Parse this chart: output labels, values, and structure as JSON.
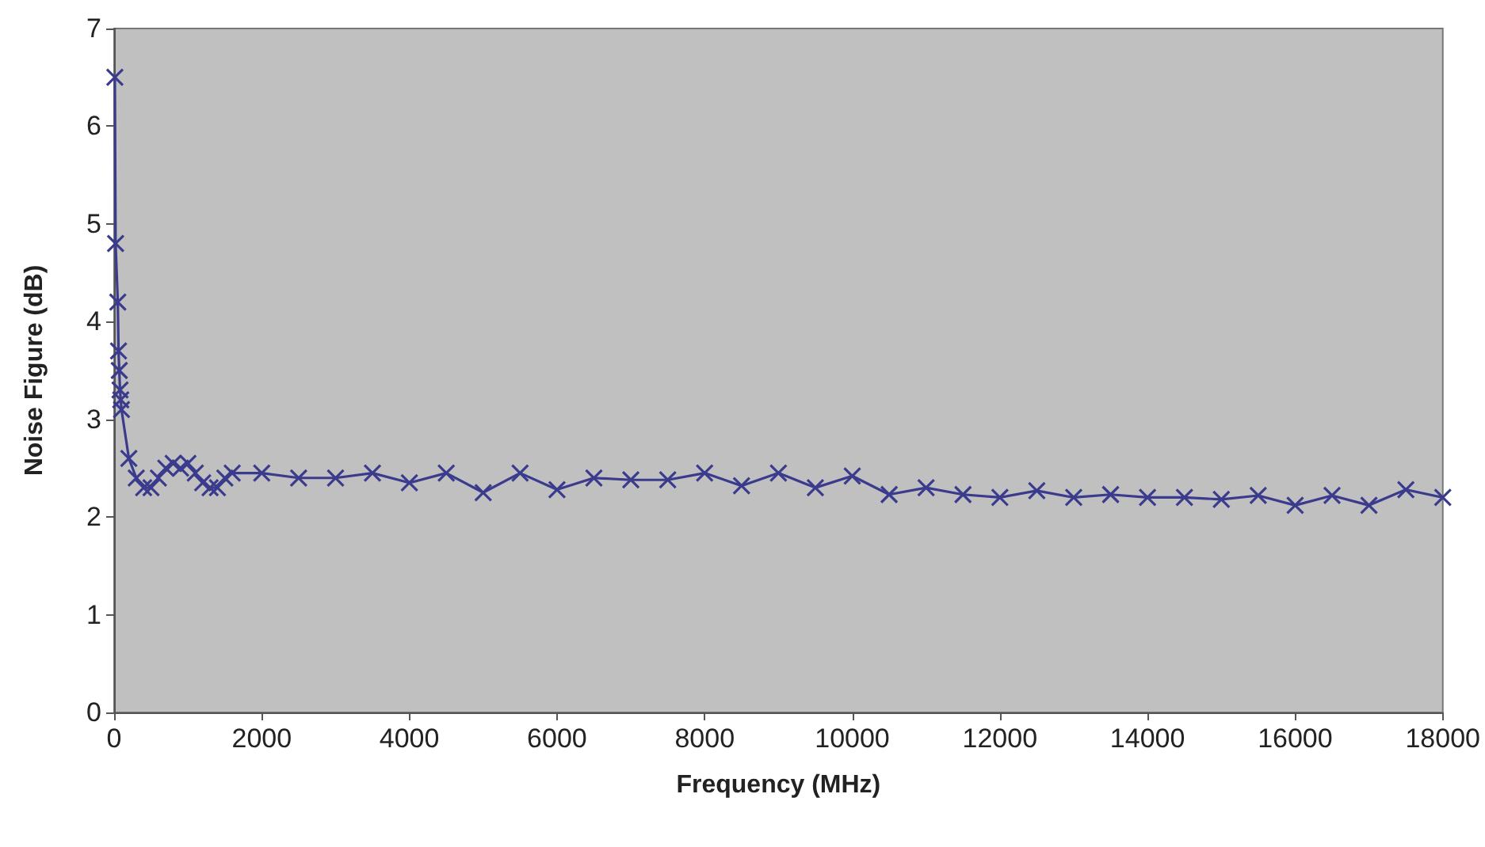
{
  "chart_data": {
    "type": "line",
    "xlabel": "Frequency (MHz)",
    "ylabel": "Noise Figure (dB)",
    "x": [
      10,
      20,
      50,
      60,
      70,
      80,
      90,
      100,
      200,
      300,
      400,
      500,
      600,
      700,
      800,
      900,
      1000,
      1100,
      1200,
      1300,
      1400,
      1500,
      1600,
      2000,
      2500,
      3000,
      3500,
      4000,
      4500,
      5000,
      5500,
      6000,
      6500,
      7000,
      7500,
      8000,
      8500,
      9000,
      9500,
      10000,
      10500,
      11000,
      11500,
      12000,
      12500,
      13000,
      13500,
      14000,
      14500,
      15000,
      15500,
      16000,
      16500,
      17000,
      17500,
      18000
    ],
    "series": [
      {
        "color": "#3b3b8e",
        "values": [
          6.5,
          4.8,
          4.2,
          3.7,
          3.5,
          3.3,
          3.2,
          3.1,
          2.6,
          2.4,
          2.3,
          2.3,
          2.4,
          2.5,
          2.55,
          2.5,
          2.55,
          2.45,
          2.35,
          2.3,
          2.3,
          2.4,
          2.45,
          2.45,
          2.4,
          2.4,
          2.45,
          2.35,
          2.45,
          2.25,
          2.45,
          2.28,
          2.4,
          2.38,
          2.38,
          2.45,
          2.32,
          2.45,
          2.3,
          2.42,
          2.23,
          2.3,
          2.23,
          2.2,
          2.27,
          2.2,
          2.23,
          2.2,
          2.2,
          2.18,
          2.22,
          2.12,
          2.22,
          2.12,
          2.28,
          2.2
        ]
      }
    ],
    "xlim": [
      0,
      18000
    ],
    "xticks": [
      0,
      2000,
      4000,
      6000,
      8000,
      10000,
      12000,
      14000,
      16000,
      18000
    ],
    "ylim": [
      0,
      7
    ],
    "yticks": [
      0,
      1,
      2,
      3,
      4,
      5,
      6,
      7
    ],
    "grid": false,
    "marker": "cross",
    "line_style": "solid"
  }
}
